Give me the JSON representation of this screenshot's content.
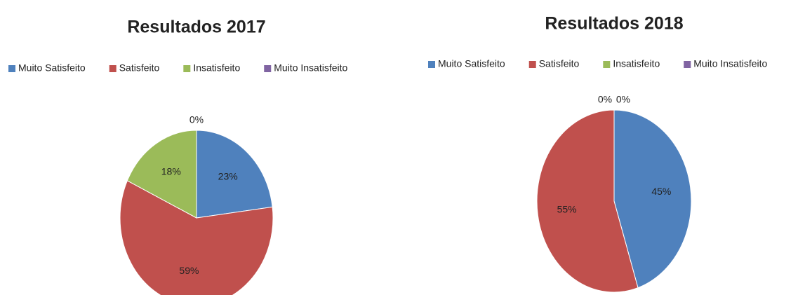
{
  "chart_data": [
    {
      "type": "pie",
      "title": "Resultados 2017",
      "categories": [
        "Muito Satisfeito",
        "Satisfeito",
        "Insatisfeito",
        "Muito Insatisfeito"
      ],
      "values": [
        23,
        59,
        18,
        0
      ],
      "value_labels": [
        "23%",
        "59%",
        "18%",
        "0%"
      ],
      "colors": [
        "#4f81bd",
        "#c0504d",
        "#9bbb59",
        "#8064a2"
      ],
      "legend": "top"
    },
    {
      "type": "pie",
      "title": "Resultados 2018",
      "categories": [
        "Muito Satisfeito",
        "Satisfeito",
        "Insatisfeito",
        "Muito Insatisfeito"
      ],
      "values": [
        45,
        55,
        0,
        0
      ],
      "value_labels": [
        "45%",
        "55%",
        "0%",
        "0%"
      ],
      "colors": [
        "#4f81bd",
        "#c0504d",
        "#9bbb59",
        "#8064a2"
      ],
      "legend": "top"
    }
  ]
}
